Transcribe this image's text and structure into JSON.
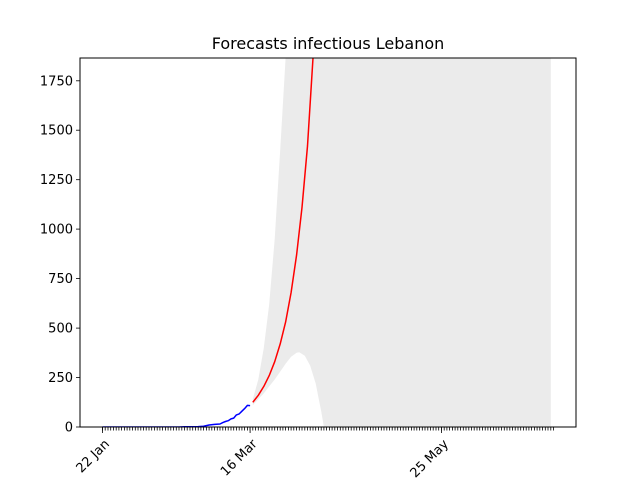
{
  "chart_data": {
    "type": "line",
    "title": "Forecasts infectious Lebanon",
    "xlabel": "",
    "ylabel": "",
    "x_axis": {
      "type": "date",
      "range": [
        "2020-01-22",
        "2020-07-05"
      ],
      "tick_labels": [
        {
          "date": "2020-01-22",
          "label": "22 Jan"
        },
        {
          "date": "2020-03-16",
          "label": "16 Mar"
        },
        {
          "date": "2020-05-25",
          "label": "25 May"
        }
      ]
    },
    "y_axis": {
      "range": [
        0,
        1865
      ],
      "ticks": [
        0,
        250,
        500,
        750,
        1000,
        1250,
        1500,
        1750
      ]
    },
    "grid": false,
    "series": [
      {
        "role": "observed",
        "color": "#0000ff",
        "points": [
          [
            "2020-01-22",
            0
          ],
          [
            "2020-01-29",
            0
          ],
          [
            "2020-02-05",
            0
          ],
          [
            "2020-02-12",
            0
          ],
          [
            "2020-02-19",
            0
          ],
          [
            "2020-02-21",
            1
          ],
          [
            "2020-02-26",
            2
          ],
          [
            "2020-02-28",
            4
          ],
          [
            "2020-03-01",
            10
          ],
          [
            "2020-03-03",
            13
          ],
          [
            "2020-03-05",
            15
          ],
          [
            "2020-03-06",
            22
          ],
          [
            "2020-03-07",
            28
          ],
          [
            "2020-03-08",
            32
          ],
          [
            "2020-03-09",
            41
          ],
          [
            "2020-03-10",
            45
          ],
          [
            "2020-03-11",
            61
          ],
          [
            "2020-03-12",
            66
          ],
          [
            "2020-03-13",
            80
          ],
          [
            "2020-03-14",
            93
          ],
          [
            "2020-03-15",
            109
          ],
          [
            "2020-03-16",
            108
          ]
        ]
      },
      {
        "role": "forecast",
        "color": "#ff0000",
        "points": [
          [
            "2020-03-17",
            125
          ],
          [
            "2020-03-19",
            160
          ],
          [
            "2020-03-21",
            205
          ],
          [
            "2020-03-23",
            260
          ],
          [
            "2020-03-25",
            330
          ],
          [
            "2020-03-27",
            420
          ],
          [
            "2020-03-29",
            530
          ],
          [
            "2020-03-31",
            680
          ],
          [
            "2020-04-02",
            870
          ],
          [
            "2020-04-04",
            1110
          ],
          [
            "2020-04-06",
            1420
          ],
          [
            "2020-04-08",
            1870
          ]
        ]
      }
    ],
    "bands": [
      {
        "role": "forecast-interval",
        "color": "#ebebeb",
        "points": [
          [
            "2020-03-17",
            110,
            140
          ],
          [
            "2020-03-19",
            140,
            240
          ],
          [
            "2020-03-21",
            170,
            400
          ],
          [
            "2020-03-23",
            205,
            620
          ],
          [
            "2020-03-25",
            240,
            950
          ],
          [
            "2020-03-27",
            280,
            1400
          ],
          [
            "2020-03-29",
            320,
            1865
          ],
          [
            "2020-03-31",
            355,
            1865
          ],
          [
            "2020-04-02",
            375,
            1865
          ],
          [
            "2020-04-03",
            378,
            1865
          ],
          [
            "2020-04-05",
            360,
            1865
          ],
          [
            "2020-04-07",
            310,
            1865
          ],
          [
            "2020-04-09",
            220,
            1865
          ],
          [
            "2020-04-11",
            80,
            1865
          ],
          [
            "2020-04-12",
            0,
            1865
          ],
          [
            "2020-07-04",
            0,
            1865
          ]
        ]
      }
    ]
  }
}
